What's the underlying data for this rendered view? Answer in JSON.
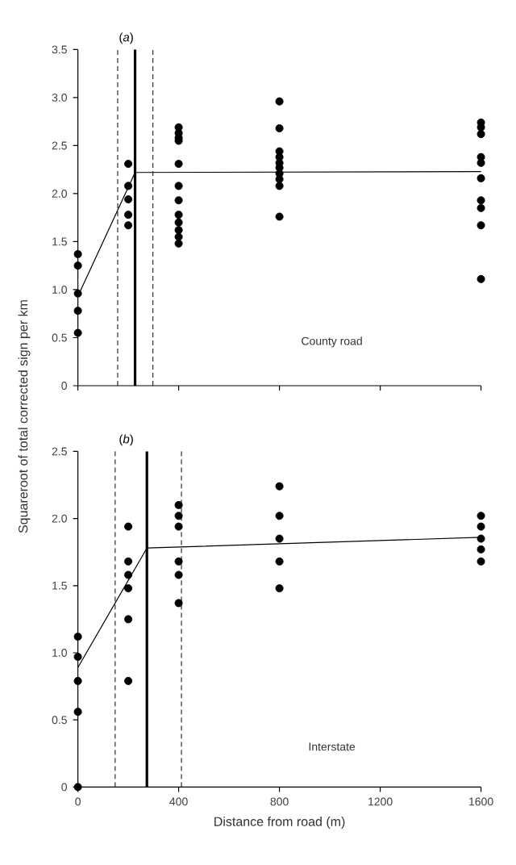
{
  "chart_data": [
    {
      "type": "scatter",
      "title": "(*a*)",
      "ylabel": "Squareroot of total corrected sign per km",
      "annotations": [
        "County road"
      ],
      "marker": "circle",
      "tick_labels": "y",
      "xlim": [
        0,
        1600
      ],
      "ylim": [
        0,
        3.5
      ],
      "xticks": [
        0,
        400,
        800,
        1200,
        1600
      ],
      "yticks": [
        0,
        0.5,
        {
          "value": 1,
          "label": "1.0"
        },
        1.5,
        {
          "value": 2,
          "label": "2.0"
        },
        2.5,
        {
          "value": 3,
          "label": "3.0"
        },
        3.5
      ],
      "ref_lines": [
        {
          "axis": "x",
          "value": 158,
          "line_style": "dashed",
          "color": "#000000"
        },
        {
          "axis": "x",
          "value": 227,
          "line_style": "solid",
          "color": "#000000"
        },
        {
          "axis": "x",
          "value": 298,
          "line_style": "dashed",
          "color": "#000000"
        }
      ],
      "series": [
        {
          "color": "#000000",
          "x": [
            0,
            0,
            0,
            0,
            0,
            200,
            200,
            200,
            200,
            200,
            400,
            400,
            400,
            400,
            400,
            400,
            400,
            400,
            400,
            400,
            400,
            400,
            800,
            800,
            800,
            800,
            800,
            800,
            800,
            800,
            800,
            800,
            1600,
            1600,
            1600,
            1600,
            1600,
            1600,
            1600,
            1600,
            1600,
            1600
          ],
          "values": [
            1.37,
            1.25,
            0.96,
            0.78,
            0.55,
            2.31,
            2.08,
            1.94,
            1.78,
            1.67,
            2.69,
            2.63,
            2.58,
            2.55,
            2.31,
            2.08,
            1.93,
            1.78,
            1.7,
            1.62,
            1.55,
            1.48,
            2.96,
            2.68,
            2.44,
            2.38,
            2.32,
            2.27,
            2.21,
            2.15,
            2.08,
            1.76,
            2.74,
            2.69,
            2.62,
            2.38,
            2.32,
            2.16,
            1.93,
            1.85,
            1.67,
            1.11
          ]
        },
        {
          "type": "line",
          "color": "#000000",
          "marker": "none",
          "x": [
            0,
            227,
            1600
          ],
          "values": [
            0.93,
            2.22,
            2.23
          ]
        }
      ]
    },
    {
      "type": "scatter",
      "title": "(*b*)",
      "xlabel": "Distance from road (m)",
      "annotations": [
        "Interstate"
      ],
      "marker": "circle",
      "xlim": [
        0,
        1600
      ],
      "ylim": [
        0,
        2.5
      ],
      "xticks": [
        0,
        400,
        800,
        1200,
        1600
      ],
      "yticks": [
        0,
        0.5,
        {
          "value": 1,
          "label": "1.0"
        },
        1.5,
        {
          "value": 2,
          "label": "2.0"
        },
        2.5
      ],
      "ref_lines": [
        {
          "axis": "x",
          "value": 148,
          "line_style": "dashed",
          "color": "#000000"
        },
        {
          "axis": "x",
          "value": 274,
          "line_style": "solid",
          "color": "#000000"
        },
        {
          "axis": "x",
          "value": 411,
          "line_style": "dashed",
          "color": "#000000"
        }
      ],
      "series": [
        {
          "color": "#000000",
          "x": [
            0,
            0,
            0,
            0,
            0,
            200,
            200,
            200,
            200,
            200,
            200,
            400,
            400,
            400,
            400,
            400,
            400,
            800,
            800,
            800,
            800,
            800,
            1600,
            1600,
            1600,
            1600,
            1600
          ],
          "values": [
            1.12,
            0.97,
            0.79,
            0.56,
            0,
            1.94,
            1.68,
            1.58,
            1.48,
            1.25,
            0.79,
            2.1,
            2.02,
            1.94,
            1.68,
            1.58,
            1.37,
            2.24,
            2.02,
            1.85,
            1.68,
            1.48,
            2.02,
            1.94,
            1.85,
            1.77,
            1.68
          ]
        },
        {
          "type": "line",
          "color": "#000000",
          "marker": "none",
          "x": [
            0,
            274,
            1600
          ],
          "values": [
            0.89,
            1.78,
            1.86
          ]
        }
      ]
    }
  ]
}
